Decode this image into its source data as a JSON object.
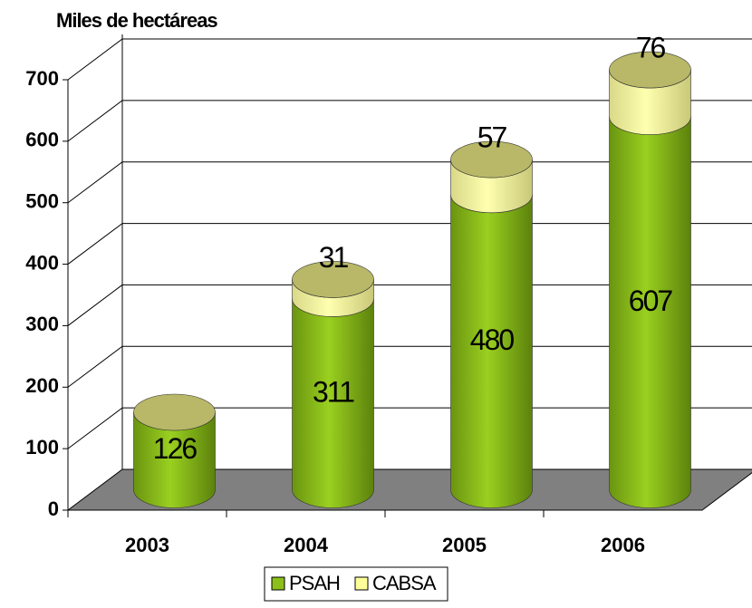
{
  "chart_data": {
    "type": "bar3d-stacked",
    "y_label": "Miles de hectáreas",
    "categories": [
      "2003",
      "2004",
      "2005",
      "2006"
    ],
    "series": [
      {
        "name": "PSAH",
        "color": "#8cbf1a",
        "values": [
          126,
          311,
          480,
          607
        ]
      },
      {
        "name": "CABSA",
        "color": "#ffff99",
        "values": [
          null,
          31,
          57,
          76
        ]
      }
    ],
    "ylim": [
      0,
      700
    ],
    "yticks": [
      0,
      100,
      200,
      300,
      400,
      500,
      600,
      700
    ],
    "grid": true,
    "legend": "bottom"
  }
}
